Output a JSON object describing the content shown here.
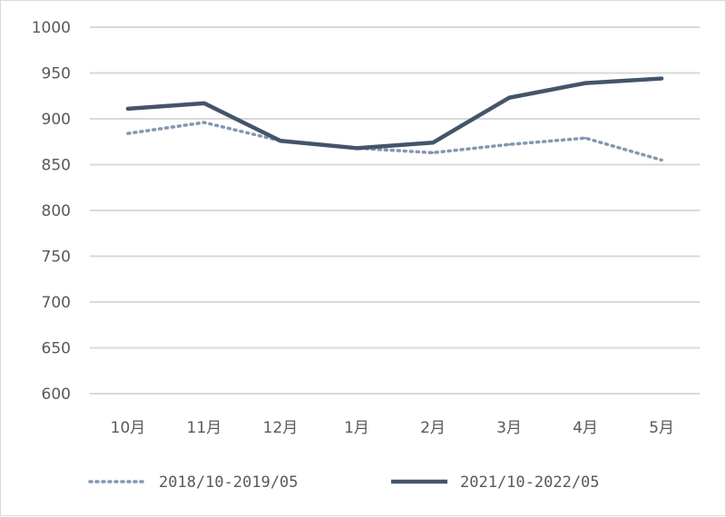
{
  "chart_data": {
    "type": "line",
    "title": "",
    "xlabel": "",
    "ylabel": "",
    "categories": [
      "10月",
      "11月",
      "12月",
      "1月",
      "2月",
      "3月",
      "4月",
      "5月"
    ],
    "yticks": [
      "600",
      "650",
      "700",
      "750",
      "800",
      "850",
      "900",
      "950",
      "1000"
    ],
    "ylim": [
      600,
      1000
    ],
    "grid": true,
    "legend_position": "bottom",
    "series": [
      {
        "name": "2018/10-2019/05",
        "style": "dotted",
        "color": "#8497b0",
        "values": [
          884,
          896,
          876,
          868,
          863,
          872,
          879,
          855
        ]
      },
      {
        "name": "2021/10-2022/05",
        "style": "solid",
        "color": "#44546a",
        "values": [
          911,
          917,
          876,
          868,
          874,
          923,
          939,
          944
        ]
      }
    ]
  }
}
